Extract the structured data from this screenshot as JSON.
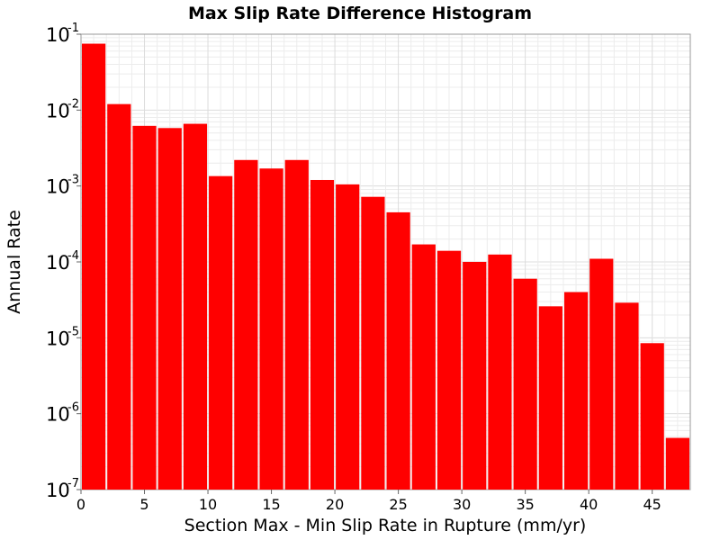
{
  "chart_data": {
    "type": "bar",
    "title": "Max Slip Rate Difference Histogram",
    "xlabel": "Section Max - Min Slip Rate in Rupture (mm/yr)",
    "ylabel": "Annual Rate",
    "y_scale": "log",
    "xlim": [
      0,
      48
    ],
    "ylim": [
      1e-07,
      0.1
    ],
    "bar_width": 2,
    "grid": true,
    "legend": "none",
    "bar_color": "#ff0000",
    "x_ticks": [
      0,
      5,
      10,
      15,
      20,
      25,
      30,
      35,
      40,
      45
    ],
    "y_ticks": [
      {
        "base": "10",
        "exp": "-7",
        "value": 1e-07
      },
      {
        "base": "10",
        "exp": "-6",
        "value": 1e-06
      },
      {
        "base": "10",
        "exp": "-5",
        "value": 1e-05
      },
      {
        "base": "10",
        "exp": "-4",
        "value": 0.0001
      },
      {
        "base": "10",
        "exp": "-3",
        "value": 0.001
      },
      {
        "base": "10",
        "exp": "-2",
        "value": 0.01
      },
      {
        "base": "10",
        "exp": "-1",
        "value": 0.1
      }
    ],
    "bins": [
      {
        "x": 0,
        "value": 0.075
      },
      {
        "x": 2,
        "value": 0.012
      },
      {
        "x": 4,
        "value": 0.0062
      },
      {
        "x": 6,
        "value": 0.0058
      },
      {
        "x": 8,
        "value": 0.0066
      },
      {
        "x": 10,
        "value": 0.00135
      },
      {
        "x": 12,
        "value": 0.0022
      },
      {
        "x": 14,
        "value": 0.0017
      },
      {
        "x": 16,
        "value": 0.0022
      },
      {
        "x": 18,
        "value": 0.0012
      },
      {
        "x": 20,
        "value": 0.00105
      },
      {
        "x": 22,
        "value": 0.00072
      },
      {
        "x": 24,
        "value": 0.00045
      },
      {
        "x": 26,
        "value": 0.00017
      },
      {
        "x": 28,
        "value": 0.00014
      },
      {
        "x": 30,
        "value": 0.0001
      },
      {
        "x": 32,
        "value": 0.000125
      },
      {
        "x": 34,
        "value": 6e-05
      },
      {
        "x": 36,
        "value": 2.6e-05
      },
      {
        "x": 38,
        "value": 4e-05
      },
      {
        "x": 40,
        "value": 0.00011
      },
      {
        "x": 42,
        "value": 2.9e-05
      },
      {
        "x": 44,
        "value": 8.5e-06
      },
      {
        "x": 46,
        "value": 4.8e-07
      }
    ]
  }
}
